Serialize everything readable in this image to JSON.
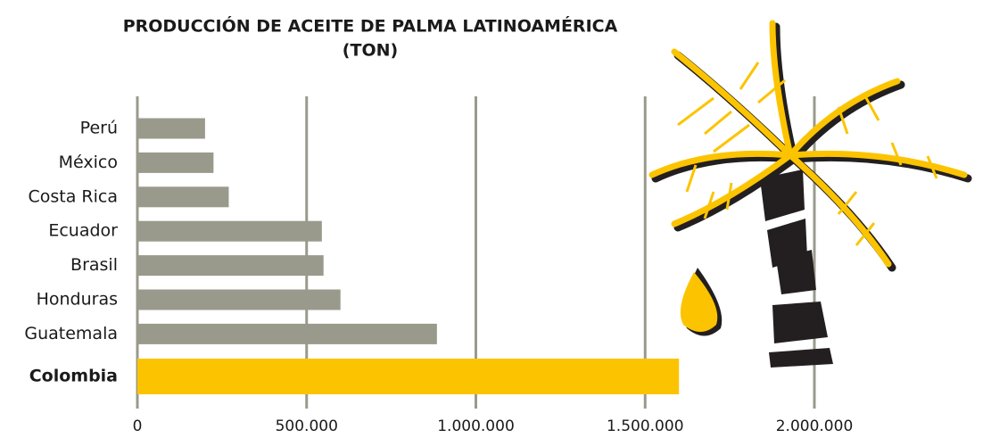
{
  "chart_data": {
    "type": "bar",
    "orientation": "horizontal",
    "title_lines": [
      "PRODUCCIÓN DE ACEITE DE PALMA LATINOAMÉRICA",
      "(TON)"
    ],
    "categories": [
      "Perú",
      "México",
      "Costa Rica",
      "Ecuador",
      "Brasil",
      "Honduras",
      "Guatemala",
      "Colombia"
    ],
    "values": [
      200000,
      225000,
      270000,
      545000,
      550000,
      600000,
      885000,
      1600000
    ],
    "colors": [
      "#9a9a8c",
      "#9a9a8c",
      "#9a9a8c",
      "#9a9a8c",
      "#9a9a8c",
      "#9a9a8c",
      "#9a9a8c",
      "#fcc400"
    ],
    "label_bold": [
      false,
      false,
      false,
      false,
      false,
      false,
      false,
      true
    ],
    "xlim": [
      0,
      2000000
    ],
    "xticks": [
      0,
      {
        "value": 500000,
        "label": "500.000"
      },
      {
        "value": 1000000,
        "label": "1.000.000"
      },
      {
        "value": 1500000,
        "label": "1.500.000"
      },
      {
        "value": 2000000,
        "label": "2.000.000"
      }
    ],
    "grid": true,
    "grid_color": "#9a9a8c"
  }
}
